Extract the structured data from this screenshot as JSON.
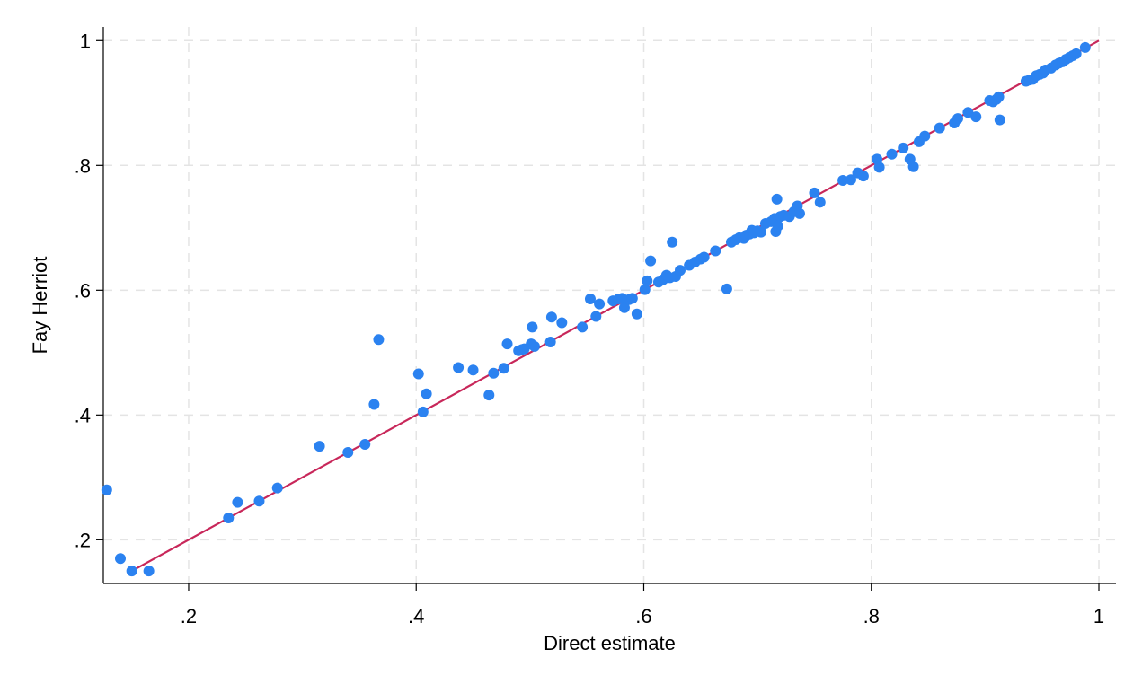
{
  "chart_data": {
    "type": "scatter",
    "xlabel": "Direct estimate",
    "ylabel": "Fay Herriot",
    "xlim": [
      0.125,
      1.015
    ],
    "ylim": [
      0.13,
      1.022
    ],
    "x_ticks": [
      {
        "value": 0.2,
        "label": ".2"
      },
      {
        "value": 0.4,
        "label": ".4"
      },
      {
        "value": 0.6,
        "label": ".6"
      },
      {
        "value": 0.8,
        "label": ".8"
      },
      {
        "value": 1.0,
        "label": "1"
      }
    ],
    "y_ticks": [
      {
        "value": 0.2,
        "label": ".2"
      },
      {
        "value": 0.4,
        "label": ".4"
      },
      {
        "value": 0.6,
        "label": ".6"
      },
      {
        "value": 0.8,
        "label": ".8"
      },
      {
        "value": 1.0,
        "label": "1"
      }
    ],
    "grid": true,
    "colors": {
      "points": "#2b82f0",
      "line": "#c8275a",
      "grid": "#e4e4e4",
      "axis": "#000000"
    },
    "reference_line": {
      "x": [
        0.15,
        1.0
      ],
      "y": [
        0.15,
        1.0
      ]
    },
    "points": [
      [
        0.128,
        0.28
      ],
      [
        0.14,
        0.17
      ],
      [
        0.15,
        0.15
      ],
      [
        0.165,
        0.15
      ],
      [
        0.235,
        0.235
      ],
      [
        0.243,
        0.26
      ],
      [
        0.262,
        0.262
      ],
      [
        0.278,
        0.283
      ],
      [
        0.315,
        0.35
      ],
      [
        0.34,
        0.34
      ],
      [
        0.355,
        0.353
      ],
      [
        0.363,
        0.417
      ],
      [
        0.367,
        0.521
      ],
      [
        0.402,
        0.466
      ],
      [
        0.406,
        0.405
      ],
      [
        0.409,
        0.434
      ],
      [
        0.437,
        0.476
      ],
      [
        0.45,
        0.472
      ],
      [
        0.464,
        0.432
      ],
      [
        0.468,
        0.467
      ],
      [
        0.477,
        0.475
      ],
      [
        0.48,
        0.514
      ],
      [
        0.49,
        0.503
      ],
      [
        0.493,
        0.505
      ],
      [
        0.495,
        0.506
      ],
      [
        0.501,
        0.514
      ],
      [
        0.502,
        0.541
      ],
      [
        0.504,
        0.51
      ],
      [
        0.518,
        0.517
      ],
      [
        0.519,
        0.557
      ],
      [
        0.528,
        0.548
      ],
      [
        0.546,
        0.541
      ],
      [
        0.553,
        0.586
      ],
      [
        0.558,
        0.558
      ],
      [
        0.561,
        0.578
      ],
      [
        0.573,
        0.583
      ],
      [
        0.578,
        0.586
      ],
      [
        0.581,
        0.587
      ],
      [
        0.583,
        0.572
      ],
      [
        0.587,
        0.585
      ],
      [
        0.59,
        0.587
      ],
      [
        0.594,
        0.562
      ],
      [
        0.601,
        0.601
      ],
      [
        0.603,
        0.615
      ],
      [
        0.606,
        0.647
      ],
      [
        0.613,
        0.613
      ],
      [
        0.617,
        0.617
      ],
      [
        0.62,
        0.624
      ],
      [
        0.623,
        0.62
      ],
      [
        0.625,
        0.677
      ],
      [
        0.628,
        0.622
      ],
      [
        0.632,
        0.632
      ],
      [
        0.64,
        0.64
      ],
      [
        0.645,
        0.645
      ],
      [
        0.65,
        0.65
      ],
      [
        0.653,
        0.653
      ],
      [
        0.663,
        0.663
      ],
      [
        0.673,
        0.602
      ],
      [
        0.677,
        0.677
      ],
      [
        0.681,
        0.681
      ],
      [
        0.684,
        0.684
      ],
      [
        0.688,
        0.683
      ],
      [
        0.69,
        0.688
      ],
      [
        0.693,
        0.69
      ],
      [
        0.695,
        0.696
      ],
      [
        0.697,
        0.692
      ],
      [
        0.7,
        0.695
      ],
      [
        0.703,
        0.693
      ],
      [
        0.707,
        0.707
      ],
      [
        0.712,
        0.71
      ],
      [
        0.715,
        0.715
      ],
      [
        0.716,
        0.694
      ],
      [
        0.717,
        0.746
      ],
      [
        0.718,
        0.703
      ],
      [
        0.72,
        0.718
      ],
      [
        0.723,
        0.72
      ],
      [
        0.728,
        0.718
      ],
      [
        0.732,
        0.726
      ],
      [
        0.735,
        0.735
      ],
      [
        0.737,
        0.723
      ],
      [
        0.75,
        0.756
      ],
      [
        0.755,
        0.741
      ],
      [
        0.775,
        0.776
      ],
      [
        0.782,
        0.777
      ],
      [
        0.788,
        0.788
      ],
      [
        0.793,
        0.783
      ],
      [
        0.805,
        0.81
      ],
      [
        0.807,
        0.797
      ],
      [
        0.818,
        0.818
      ],
      [
        0.828,
        0.828
      ],
      [
        0.834,
        0.81
      ],
      [
        0.837,
        0.798
      ],
      [
        0.842,
        0.838
      ],
      [
        0.847,
        0.847
      ],
      [
        0.86,
        0.86
      ],
      [
        0.873,
        0.868
      ],
      [
        0.876,
        0.875
      ],
      [
        0.885,
        0.885
      ],
      [
        0.892,
        0.878
      ],
      [
        0.904,
        0.904
      ],
      [
        0.907,
        0.902
      ],
      [
        0.91,
        0.906
      ],
      [
        0.912,
        0.91
      ],
      [
        0.913,
        0.873
      ],
      [
        0.936,
        0.935
      ],
      [
        0.939,
        0.937
      ],
      [
        0.942,
        0.938
      ],
      [
        0.945,
        0.944
      ],
      [
        0.948,
        0.946
      ],
      [
        0.951,
        0.948
      ],
      [
        0.953,
        0.953
      ],
      [
        0.958,
        0.956
      ],
      [
        0.962,
        0.961
      ],
      [
        0.965,
        0.964
      ],
      [
        0.968,
        0.966
      ],
      [
        0.971,
        0.97
      ],
      [
        0.974,
        0.973
      ],
      [
        0.977,
        0.976
      ],
      [
        0.98,
        0.979
      ],
      [
        0.988,
        0.989
      ]
    ]
  }
}
